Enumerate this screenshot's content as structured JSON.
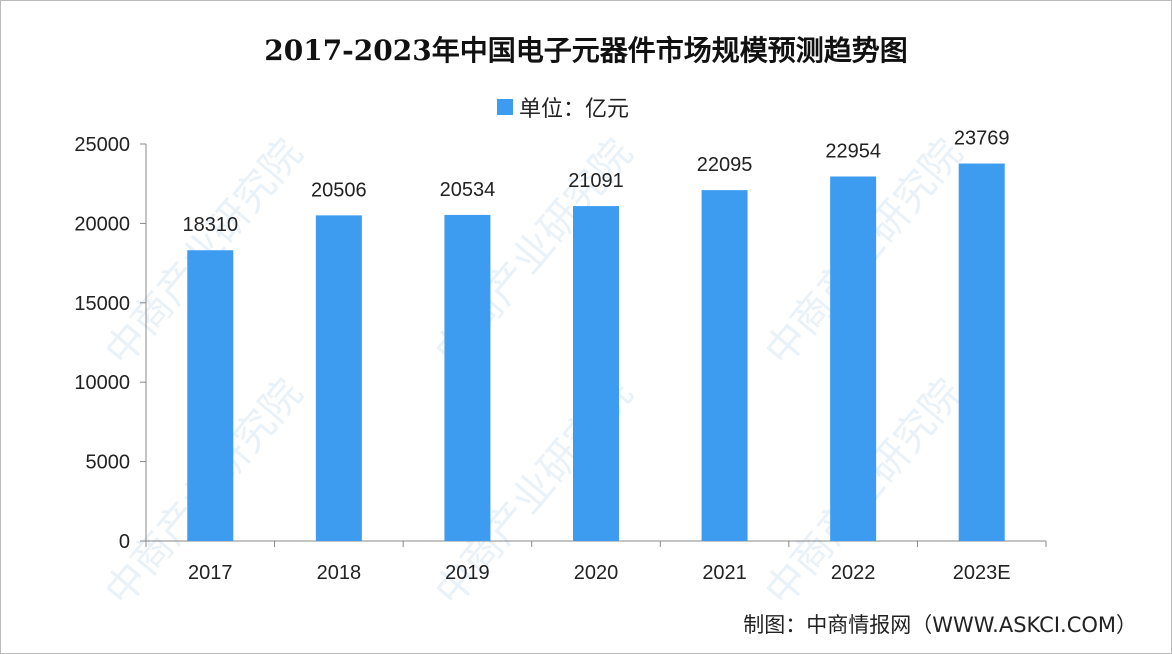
{
  "chart_data": {
    "type": "bar",
    "title": "2017-2023年中国电子元器件市场规模预测趋势图",
    "legend": "单位：亿元",
    "legend_position": "top-center",
    "categories": [
      "2017",
      "2018",
      "2019",
      "2020",
      "2021",
      "2022",
      "2023E"
    ],
    "values": [
      18310,
      20506,
      20534,
      21091,
      22095,
      22954,
      23769
    ],
    "ylim": [
      0,
      25000
    ],
    "yticks": [
      "0",
      "5000",
      "10000",
      "15000",
      "20000",
      "25000"
    ],
    "grid": false,
    "bar_color": "#3d9cf0",
    "xlabel": "",
    "ylabel": ""
  },
  "source": "制图：中商情报网（WWW.ASKCI.COM）",
  "watermark": "中商产业研究院"
}
